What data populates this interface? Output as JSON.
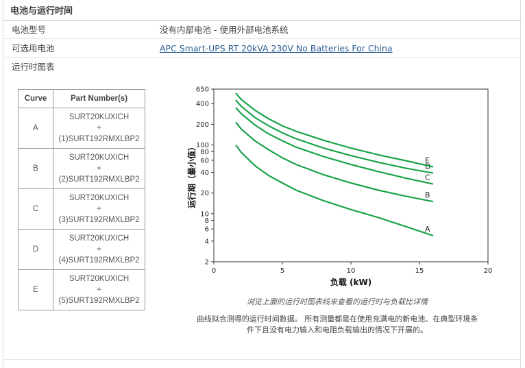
{
  "section": {
    "title": "电池与运行时间"
  },
  "rows": [
    {
      "label": "电池型号",
      "value": "没有内部电池 - 使用外部电池系统"
    },
    {
      "label": "可选用电池",
      "link": "APC Smart-UPS RT 20kVA 230V No Batteries For China"
    },
    {
      "label": "运行时图表"
    }
  ],
  "parts_table": {
    "headers": [
      "Curve",
      "Part Number(s)"
    ],
    "rows": [
      {
        "curve": "A",
        "line1": "SURT20KUXICH",
        "plus": "+",
        "line2": "(1)SURT192RMXLBP2"
      },
      {
        "curve": "B",
        "line1": "SURT20KUXICH",
        "plus": "+",
        "line2": "(2)SURT192RMXLBP2"
      },
      {
        "curve": "C",
        "line1": "SURT20KUXICH",
        "plus": "+",
        "line2": "(3)SURT192RMXLBP2"
      },
      {
        "curve": "D",
        "line1": "SURT20KUXICH",
        "plus": "+",
        "line2": "(4)SURT192RMXLBP2"
      },
      {
        "curve": "E",
        "line1": "SURT20KUXICH",
        "plus": "+",
        "line2": "(5)SURT192RMXLBP2"
      }
    ]
  },
  "chart_data": {
    "type": "line",
    "xlabel": "负载 (kW)",
    "ylabel": "运行期（最小值）",
    "xlim": [
      0,
      20
    ],
    "ylim": [
      2,
      650
    ],
    "yscale": "log",
    "xticks": [
      0,
      5,
      10,
      15,
      20
    ],
    "yticks": [
      2,
      4,
      6,
      8,
      10,
      20,
      40,
      60,
      80,
      100,
      200,
      400,
      650
    ],
    "grid": false,
    "line_color": "#1aa34a",
    "x": [
      1.6,
      2,
      3,
      4,
      5,
      6,
      8,
      10,
      12,
      14,
      16
    ],
    "series": [
      {
        "name": "A",
        "values": [
          100,
          78,
          50,
          36,
          28,
          22,
          15.5,
          11.5,
          8.8,
          6.5,
          4.8
        ]
      },
      {
        "name": "B",
        "values": [
          215,
          170,
          115,
          85,
          65,
          52,
          37,
          28,
          22,
          18,
          15
        ]
      },
      {
        "name": "C",
        "values": [
          350,
          285,
          195,
          145,
          115,
          93,
          68,
          52,
          41,
          33,
          27
        ]
      },
      {
        "name": "D",
        "values": [
          450,
          365,
          250,
          190,
          150,
          123,
          90,
          70,
          56,
          46,
          39
        ]
      },
      {
        "name": "E",
        "values": [
          570,
          460,
          320,
          240,
          190,
          158,
          117,
          90,
          72,
          59,
          48
        ]
      }
    ]
  },
  "caption": "浏览上面的运行时图表线来查看的运行时与负载比详情",
  "note_lines": [
    "曲线拟合测得的运行时间数据。 所有测量都是在使用充满电的新电池、在典型环境条",
    "件下且没有电力输入和电阻负载输出的情况下开展的。"
  ]
}
